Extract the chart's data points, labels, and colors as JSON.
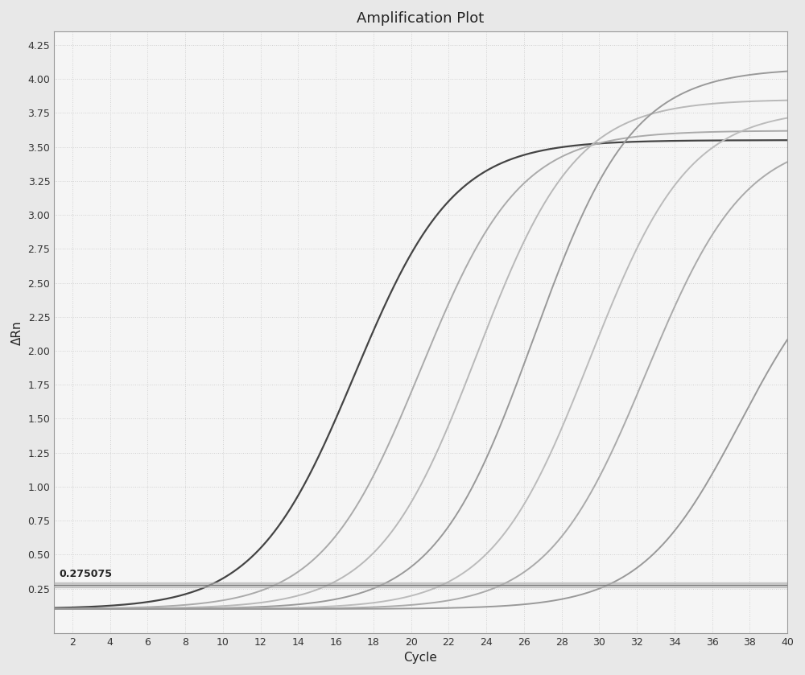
{
  "title": "Amplification Plot",
  "xlabel": "Cycle",
  "ylabel": "ΔRn",
  "xlim": [
    1,
    40
  ],
  "ylim": [
    -0.08,
    4.35
  ],
  "yticks": [
    0.25,
    0.5,
    0.75,
    1.0,
    1.25,
    1.5,
    1.75,
    2.0,
    2.25,
    2.5,
    2.75,
    3.0,
    3.25,
    3.5,
    3.75,
    4.0,
    4.25
  ],
  "xticks": [
    2,
    4,
    6,
    8,
    10,
    12,
    14,
    16,
    18,
    20,
    22,
    24,
    26,
    28,
    30,
    32,
    34,
    36,
    38,
    40
  ],
  "threshold": 0.275075,
  "threshold_label": "0.275075",
  "background_color": "#e8e8e8",
  "plot_bg_color": "#f5f5f5",
  "grid_color": "#d0d0d0",
  "curves": [
    {
      "ct": 17.0,
      "plateau": 3.55,
      "slope": 0.38,
      "color": "#444444",
      "lw": 1.6
    },
    {
      "ct": 20.5,
      "plateau": 3.62,
      "slope": 0.38,
      "color": "#aaaaaa",
      "lw": 1.4
    },
    {
      "ct": 23.5,
      "plateau": 3.85,
      "slope": 0.38,
      "color": "#b8b8b8",
      "lw": 1.4
    },
    {
      "ct": 26.5,
      "plateau": 4.08,
      "slope": 0.38,
      "color": "#999999",
      "lw": 1.4
    },
    {
      "ct": 29.5,
      "plateau": 3.78,
      "slope": 0.38,
      "color": "#bbbbbb",
      "lw": 1.4
    },
    {
      "ct": 32.5,
      "plateau": 3.58,
      "slope": 0.38,
      "color": "#aaaaaa",
      "lw": 1.4
    },
    {
      "ct": 37.5,
      "plateau": 2.85,
      "slope": 0.38,
      "color": "#999999",
      "lw": 1.4
    }
  ]
}
